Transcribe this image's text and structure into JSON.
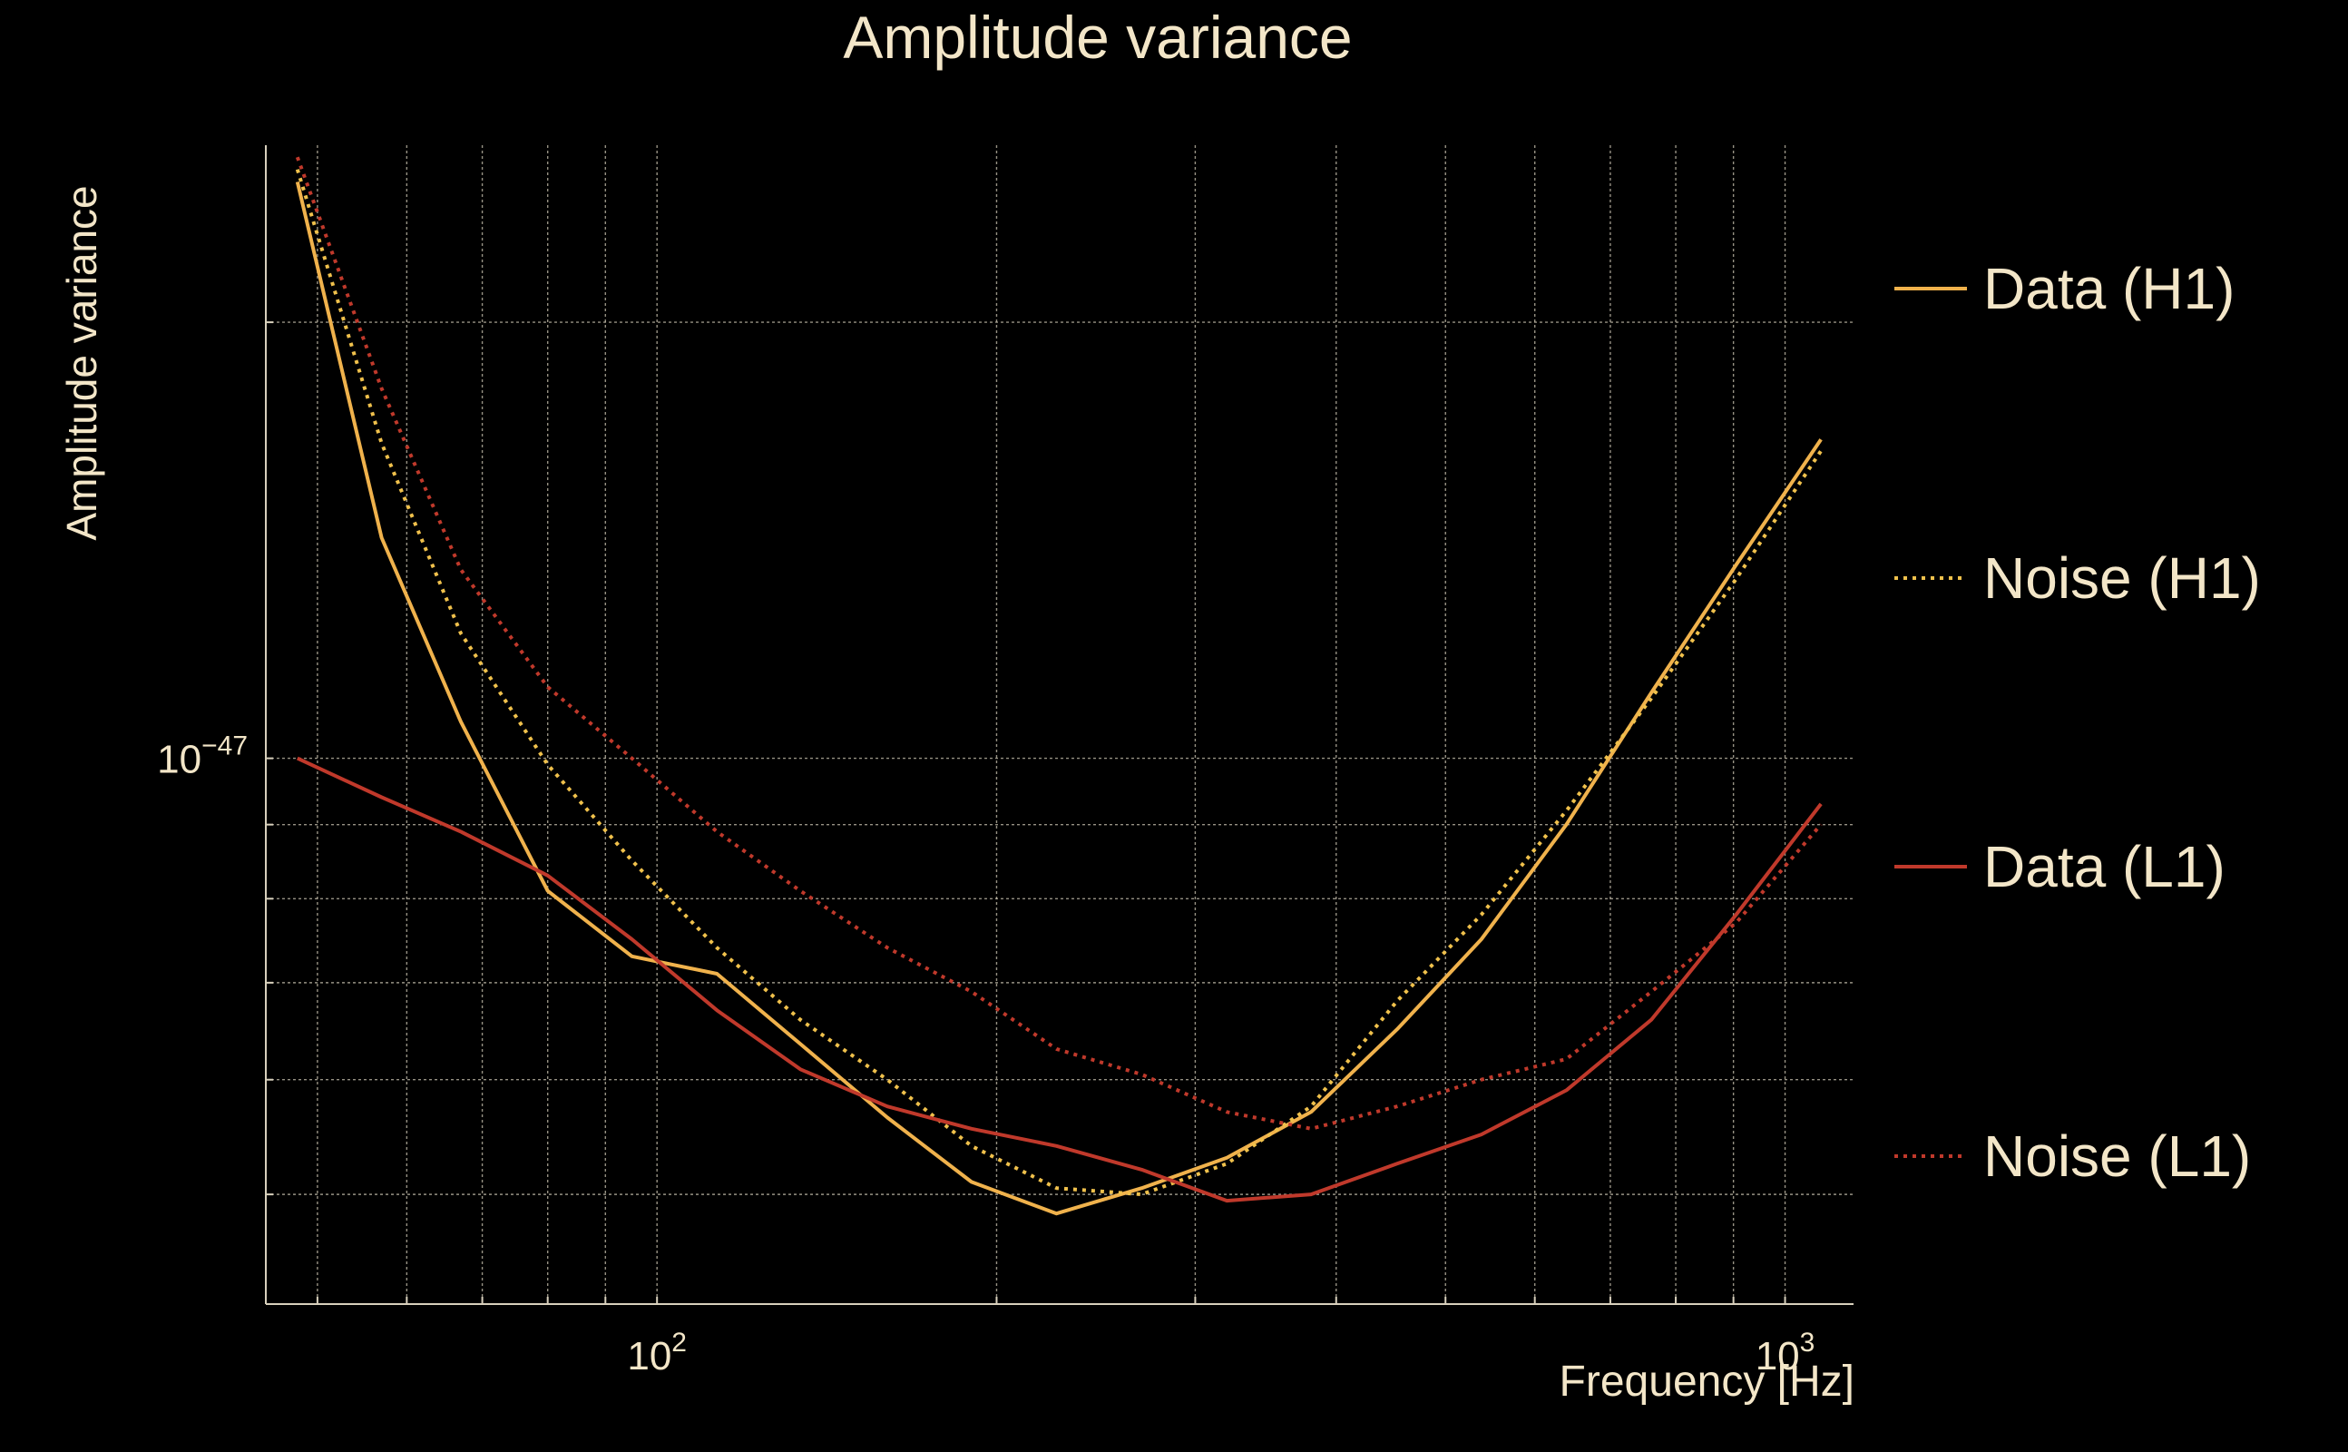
{
  "chart_data": {
    "type": "line",
    "title": "Amplitude variance",
    "xlabel": "Frequency [Hz]",
    "ylabel": "Amplitude variance",
    "xscale": "log",
    "yscale": "log",
    "xlim": [
      45,
      1150
    ],
    "ylim": [
      4.2e-48,
      2.65e-47
    ],
    "grid": true,
    "legend_position": "right",
    "x_ticks": [
      {
        "value": 100,
        "base": "10",
        "exp": "2"
      },
      {
        "value": 1000,
        "base": "10",
        "exp": "3"
      }
    ],
    "y_ticks": [
      {
        "value": 1e-47,
        "base": "10",
        "exp": "−47"
      }
    ],
    "x_minor_ticks": [
      50,
      60,
      70,
      80,
      90,
      200,
      300,
      400,
      500,
      600,
      700,
      800,
      900
    ],
    "y_minor_ticks": [
      5e-48,
      6e-48,
      7e-48,
      8e-48,
      9e-48,
      2e-47
    ],
    "x": [
      48,
      57,
      67,
      80,
      95,
      113,
      134,
      160,
      190,
      226,
      269,
      320,
      380,
      453,
      538,
      640,
      761,
      905,
      1076
    ],
    "series": [
      {
        "name": "Data (H1)",
        "color": "#F0B24C",
        "dash": "solid",
        "values": [
          2.5e-47,
          1.42e-47,
          1.06e-47,
          8.1e-48,
          7.3e-48,
          7.1e-48,
          6.35e-48,
          5.65e-48,
          5.1e-48,
          4.85e-48,
          5.05e-48,
          5.3e-48,
          5.7e-48,
          6.5e-48,
          7.5e-48,
          9e-48,
          1.11e-47,
          1.36e-47,
          1.66e-47
        ]
      },
      {
        "name": "Noise (H1)",
        "color": "#F0C14C",
        "dash": "dotted",
        "values": [
          2.55e-47,
          1.65e-47,
          1.22e-47,
          9.9e-48,
          8.5e-48,
          7.4e-48,
          6.6e-48,
          6e-48,
          5.4e-48,
          5.05e-48,
          5e-48,
          5.25e-48,
          5.75e-48,
          6.8e-48,
          7.8e-48,
          9.2e-48,
          1.1e-47,
          1.33e-47,
          1.63e-47
        ]
      },
      {
        "name": "Data (L1)",
        "color": "#C0392B",
        "dash": "solid",
        "values": [
          1e-47,
          9.4e-48,
          8.9e-48,
          8.3e-48,
          7.5e-48,
          6.7e-48,
          6.1e-48,
          5.75e-48,
          5.55e-48,
          5.4e-48,
          5.2e-48,
          4.95e-48,
          5e-48,
          5.25e-48,
          5.5e-48,
          5.9e-48,
          6.6e-48,
          7.8e-48,
          9.3e-48
        ]
      },
      {
        "name": "Noise (L1)",
        "color": "#C0392B",
        "dash": "dotted",
        "values": [
          2.6e-47,
          1.8e-47,
          1.35e-47,
          1.12e-47,
          1e-47,
          8.9e-48,
          8.1e-48,
          7.4e-48,
          6.9e-48,
          6.3e-48,
          6.05e-48,
          5.7e-48,
          5.55e-48,
          5.75e-48,
          6e-48,
          6.2e-48,
          6.9e-48,
          7.7e-48,
          9e-48
        ]
      }
    ]
  }
}
